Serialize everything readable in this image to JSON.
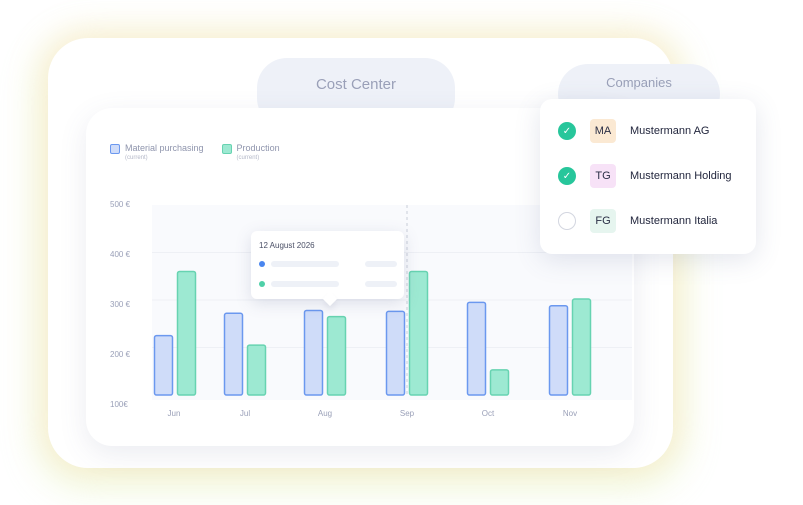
{
  "tabs": {
    "cost_center": "Cost Center",
    "companies": "Companies"
  },
  "legend": [
    {
      "label": "Material purchasing",
      "sub": "(current)",
      "color": "#cfdcf9"
    },
    {
      "label": "Production",
      "sub": "(current)",
      "color": "#9de9d2"
    }
  ],
  "tooltip": {
    "date": "12 August 2026"
  },
  "companies": [
    {
      "code": "MA",
      "name": "Mustermann AG",
      "checked": true,
      "badge_color": "#fbe9d3"
    },
    {
      "code": "TG",
      "name": "Mustermann Holding",
      "checked": true,
      "badge_color": "#f7e2f7"
    },
    {
      "code": "FG",
      "name": "Mustermann Italia",
      "checked": false,
      "badge_color": "#e6f5ef"
    }
  ],
  "chart_data": {
    "type": "bar",
    "categories": [
      "Jun",
      "Jul",
      "Aug",
      "Sep",
      "Oct",
      "Nov"
    ],
    "y_ticks": [
      "500 €",
      "400 €",
      "300 €",
      "200 €",
      "100€"
    ],
    "ylim": [
      100,
      500
    ],
    "series": [
      {
        "name": "Material purchasing",
        "values": [
          225,
          272,
          278,
          276,
          295,
          288
        ],
        "color": "#cfdcf9",
        "stroke": "#6b98ef"
      },
      {
        "name": "Production",
        "values": [
          360,
          205,
          265,
          360,
          153,
          302
        ],
        "color": "#9de9d2",
        "stroke": "#67d3b1"
      }
    ],
    "highlight_category": "Sep"
  }
}
